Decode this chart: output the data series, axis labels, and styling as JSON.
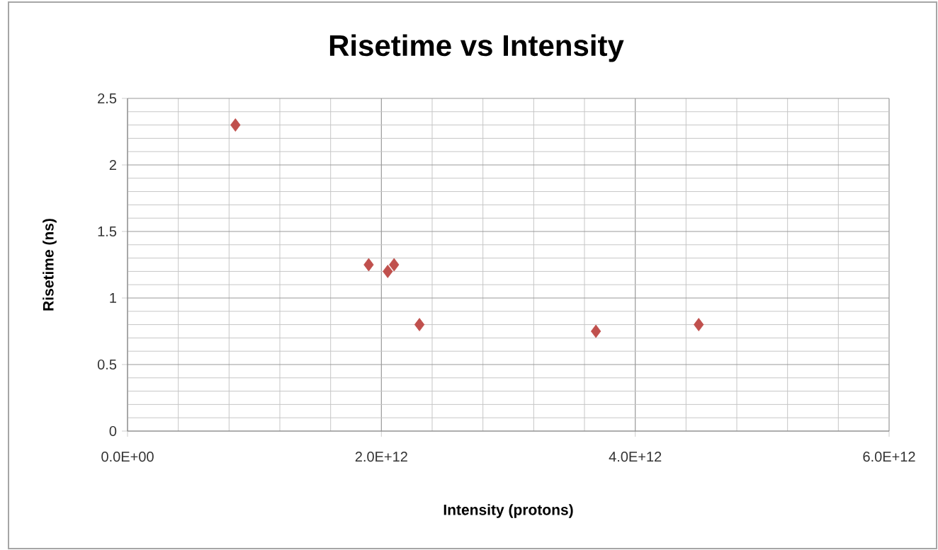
{
  "chart_data": {
    "type": "scatter",
    "title": "Risetime vs Intensity",
    "xlabel": "Intensity (protons)",
    "ylabel": "Risetime (ns)",
    "series": [
      {
        "color": "#c0504d",
        "x": [
          850000000000.0,
          1900000000000.0,
          2050000000000.0,
          2100000000000.0,
          2300000000000.0,
          3690000000000.0,
          4500000000000.0
        ],
        "values": [
          2.3,
          1.25,
          1.2,
          1.25,
          0.8,
          0.75,
          0.8
        ]
      }
    ],
    "xlim": [
      0,
      6000000000000.0
    ],
    "ylim": [
      0,
      2.5
    ],
    "xticks": [
      {
        "value": 0,
        "label": "0.0E+00"
      },
      {
        "value": 2000000000000.0,
        "label": "2.0E+12"
      },
      {
        "value": 4000000000000.0,
        "label": "4.0E+12"
      },
      {
        "value": 6000000000000.0,
        "label": "6.0E+12"
      }
    ],
    "yticks": [
      0,
      0.5,
      1,
      1.5,
      2,
      2.5
    ],
    "grid": true,
    "marker": "diamond"
  }
}
